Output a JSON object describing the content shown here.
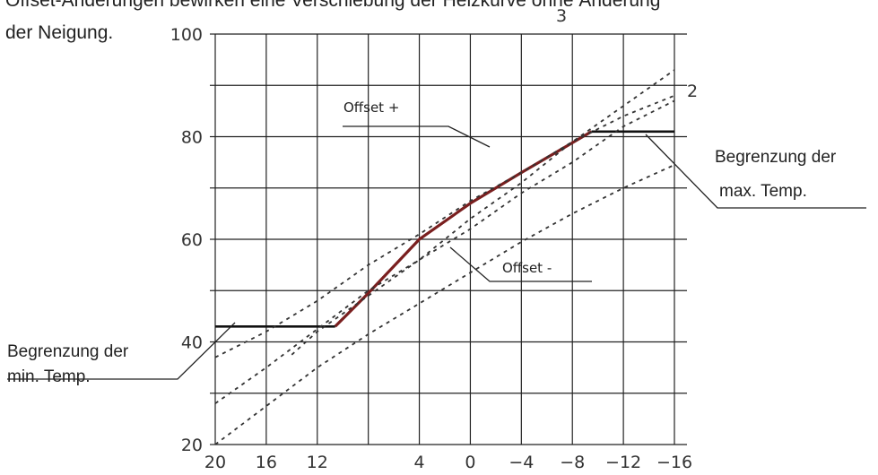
{
  "caption_top": "Offset-Änderungen bewirken eine Verschiebung der Heizkurve ohne Änderung",
  "caption": "der Neigung.",
  "chart_data": {
    "type": "line",
    "x_ticks": [
      "20",
      "16",
      "12",
      "4",
      "0",
      "−4",
      "−8",
      "−12",
      "−16"
    ],
    "x_tick_values": [
      20,
      16,
      12,
      4,
      0,
      -4,
      -8,
      -12,
      -16
    ],
    "y_ticks": [
      "20",
      "40",
      "60",
      "80",
      "100"
    ],
    "y_tick_values": [
      20,
      40,
      60,
      80,
      100
    ],
    "xlim": [
      20,
      -16
    ],
    "ylim": [
      20,
      100
    ],
    "grid": true,
    "series": [
      {
        "name": "",
        "style": "heating-curve",
        "x": [
          10.6,
          8,
          4,
          0,
          -4,
          -9.5
        ],
        "y": [
          43,
          49.5,
          60,
          67,
          73,
          81
        ]
      },
      {
        "name": "",
        "style": "min-limit",
        "x": [
          20,
          10.6
        ],
        "y": [
          43,
          43
        ]
      },
      {
        "name": "",
        "style": "max-limit",
        "x": [
          -9.5,
          -16
        ],
        "y": [
          81,
          81
        ]
      },
      {
        "name": "",
        "style": "offset-plus",
        "x": [
          20,
          16,
          12,
          8,
          4,
          0,
          -4,
          -8,
          -12,
          -16
        ],
        "y": [
          37,
          42,
          48,
          55,
          61,
          67.5,
          73,
          79,
          84,
          88
        ]
      },
      {
        "name": "",
        "style": "offset-minus",
        "x": [
          20,
          16,
          12,
          8,
          4,
          0,
          -4,
          -8,
          -12,
          -16
        ],
        "y": [
          20,
          27.5,
          35,
          41.5,
          47.5,
          53.5,
          59.5,
          65,
          70,
          74.5
        ]
      },
      {
        "name": "",
        "style": "curve-3",
        "x": [
          20,
          16,
          12,
          8,
          4,
          0,
          -4,
          -8,
          -12,
          -16
        ],
        "y": [
          28,
          35,
          42.5,
          50,
          56,
          62,
          69,
          75,
          82,
          87
        ]
      },
      {
        "name": "",
        "style": "curve-2",
        "x": [
          14,
          12,
          8,
          4,
          0,
          -4,
          -8,
          -12,
          -16
        ],
        "y": [
          37.5,
          42,
          49,
          56,
          64,
          71,
          79,
          86,
          93
        ]
      }
    ],
    "curve_labels": [
      "3",
      "2"
    ],
    "annotations": {
      "offset_plus": "Offset  +",
      "offset_minus": "Offset  -",
      "max_limit_line1": "Begrenzung der",
      "max_limit_line2": "max. Temp.",
      "min_limit_line1": "Begrenzung der",
      "min_limit_line2": "min. Temp."
    },
    "colors": {
      "heating_curve": "#7a1f1f",
      "grid": "#222222",
      "limit": "#111111",
      "offset": "#333333"
    }
  }
}
